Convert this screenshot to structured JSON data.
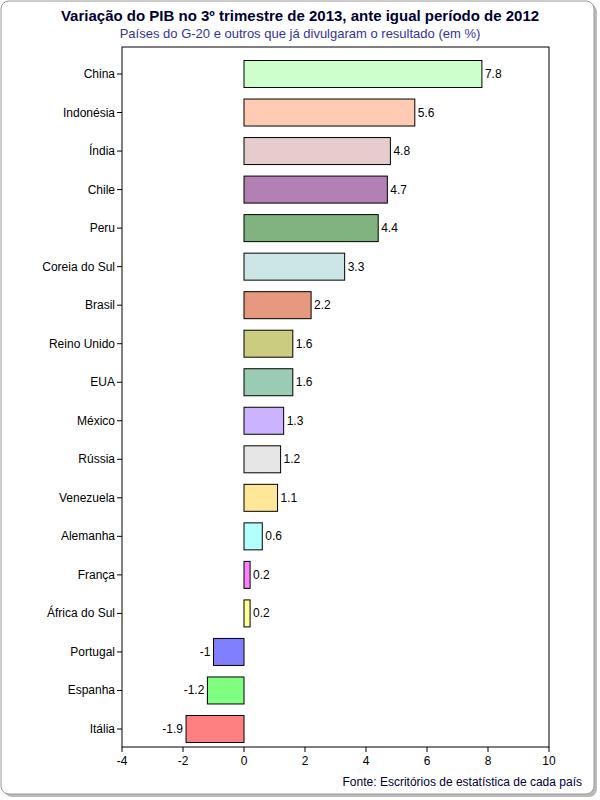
{
  "chart_data": {
    "type": "bar",
    "orientation": "horizontal",
    "title": "Variação do PIB no 3º trimestre de 2013, ante igual período de 2012",
    "subtitle": "Países do G-20 e outros que já divulgaram o resultado (em %)",
    "source": "Fonte: Escritórios de estatística de cada país",
    "categories": [
      "China",
      "Indonésia",
      "Índia",
      "Chile",
      "Peru",
      "Coreia do Sul",
      "Brasil",
      "Reino Unido",
      "EUA",
      "México",
      "Rússia",
      "Venezuela",
      "Alemanha",
      "França",
      "África do Sul",
      "Portugal",
      "Espanha",
      "Itália"
    ],
    "values": [
      7.8,
      5.6,
      4.8,
      4.7,
      4.4,
      3.3,
      2.2,
      1.6,
      1.6,
      1.3,
      1.2,
      1.1,
      0.6,
      0.2,
      0.2,
      -1,
      -1.2,
      -1.9
    ],
    "colors": [
      "#ccffcc",
      "#ffccb3",
      "#e6cccc",
      "#b380b3",
      "#80b380",
      "#cce6e6",
      "#e6997f",
      "#cccc80",
      "#99ccb3",
      "#ccb3ff",
      "#e6e6e6",
      "#ffe699",
      "#b3ffff",
      "#ff80ff",
      "#ffff99",
      "#8080ff",
      "#80ff80",
      "#ff8080"
    ],
    "xlim": [
      -4,
      10
    ],
    "xticks": [
      -4,
      -2,
      0,
      2,
      4,
      6,
      8,
      10
    ],
    "data_labels": true,
    "grid": false
  }
}
